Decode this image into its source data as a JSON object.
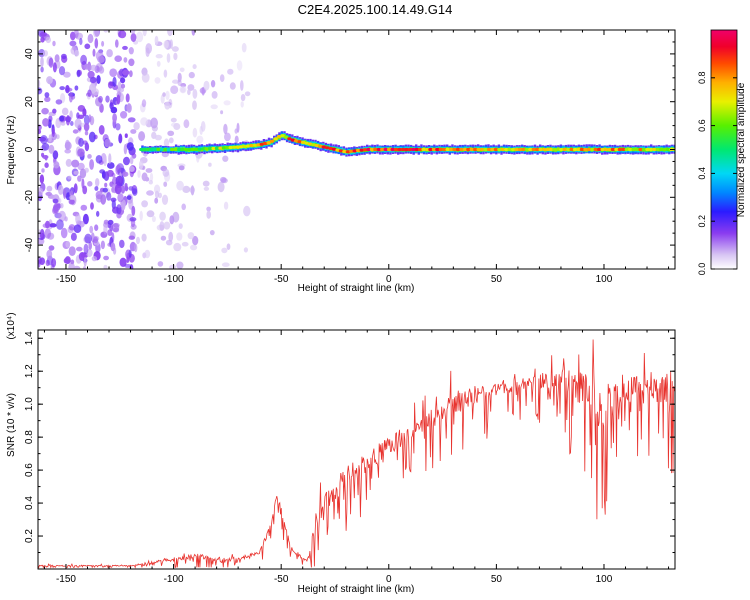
{
  "title": "C2E4.2025.100.14.49.G14",
  "top_panel": {
    "xlabel": "Height of straight line (km)",
    "ylabel": "Frequency (Hz)",
    "colorbar_label": "Normalized spectral amplitude",
    "colorbar_ticks": [
      "0.0",
      "0.2",
      "0.4",
      "0.6",
      "0.8"
    ]
  },
  "bottom_panel": {
    "xlabel": "Height of straight line (km)",
    "ylabel": "SNR (10 * v/v)",
    "scale_note": "(x10⁴)"
  },
  "chart_data": [
    {
      "type": "heatmap",
      "xlabel": "Height of straight line (km)",
      "ylabel": "Frequency (Hz)",
      "xlim": [
        -163,
        133
      ],
      "ylim": [
        -50,
        50
      ],
      "x_ticks": [
        -150,
        -100,
        -50,
        0,
        50,
        100
      ],
      "y_ticks": [
        -40,
        -20,
        0,
        20,
        40
      ],
      "colorbar": {
        "label": "Normalized spectral amplitude",
        "range": [
          0,
          1
        ],
        "ticks": [
          0.0,
          0.2,
          0.4,
          0.6,
          0.8
        ],
        "colormap": "rainbow"
      },
      "ridge": {
        "x": [
          -115,
          -100,
          -90,
          -80,
          -70,
          -60,
          -55,
          -50,
          -45,
          -40,
          -35,
          -30,
          -25,
          -20,
          -10,
          0,
          10,
          20,
          40,
          60,
          80,
          100,
          120,
          133
        ],
        "freq": [
          0,
          0,
          0,
          0.5,
          1,
          2,
          3,
          6,
          4,
          3,
          2,
          1,
          0,
          -1,
          0,
          0,
          0,
          0,
          0,
          0,
          0,
          0,
          0,
          0
        ],
        "peak_amplitude": [
          0.55,
          0.6,
          0.65,
          0.7,
          0.75,
          0.9,
          0.85,
          0.8,
          0.9,
          0.9,
          0.85,
          0.9,
          0.95,
          0.95,
          1.0,
          1.0,
          0.95,
          0.9,
          0.85,
          0.85,
          0.8,
          0.9,
          0.8,
          0.8
        ]
      },
      "noise_region_x": [
        -163,
        -65
      ]
    },
    {
      "type": "line",
      "xlabel": "Height of straight line (km)",
      "ylabel": "SNR (10 * v/v)",
      "y_scale_factor": 10000,
      "xlim": [
        -163,
        133
      ],
      "ylim": [
        0,
        1.45
      ],
      "x_ticks": [
        -150,
        -100,
        -50,
        0,
        50,
        100
      ],
      "y_ticks": [
        0.2,
        0.4,
        0.6,
        0.8,
        1.0,
        1.2,
        1.4
      ],
      "series": [
        {
          "x": [
            -163,
            -140,
            -120,
            -110,
            -100,
            -90,
            -80,
            -70,
            -60,
            -55,
            -52,
            -50,
            -47,
            -45,
            -43,
            -40,
            -38,
            -35,
            -33,
            -30,
            -25,
            -20,
            -10,
            0,
            10,
            20,
            30,
            40,
            50,
            60,
            70,
            80,
            85,
            90,
            95,
            100,
            105,
            110,
            120,
            133
          ],
          "y": [
            0.02,
            0.02,
            0.02,
            0.04,
            0.06,
            0.08,
            0.06,
            0.06,
            0.1,
            0.25,
            0.45,
            0.35,
            0.2,
            0.12,
            0.1,
            0.06,
            0.05,
            0.2,
            0.3,
            0.4,
            0.48,
            0.56,
            0.65,
            0.75,
            0.85,
            0.92,
            1.0,
            1.05,
            1.1,
            1.12,
            1.14,
            1.15,
            1.12,
            1.1,
            1.05,
            1.0,
            1.05,
            1.1,
            1.1,
            1.1
          ],
          "spread": [
            0.01,
            0.01,
            0.01,
            0.02,
            0.04,
            0.05,
            0.04,
            0.04,
            0.04,
            0.08,
            0.05,
            0.08,
            0.06,
            0.05,
            0.04,
            0.03,
            0.02,
            0.12,
            0.18,
            0.18,
            0.2,
            0.2,
            0.2,
            0.2,
            0.22,
            0.22,
            0.22,
            0.2,
            0.15,
            0.12,
            0.15,
            0.22,
            0.3,
            0.35,
            0.45,
            0.45,
            0.35,
            0.3,
            0.35,
            0.35
          ],
          "color": "#e8332e"
        }
      ]
    }
  ]
}
